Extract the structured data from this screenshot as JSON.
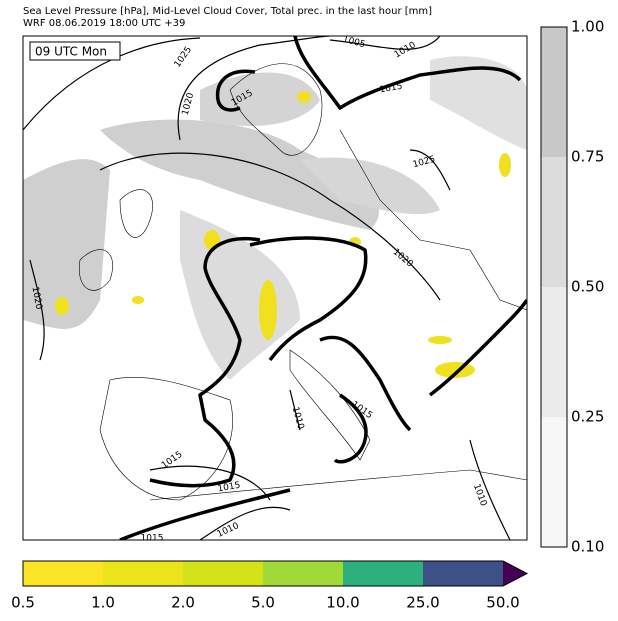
{
  "header": {
    "title": "Sea Level Pressure [hPa], Mid-Level Cloud Cover, Total prec. in the last hour [mm]",
    "subtitle": "WRF 08.06.2019 18:00 UTC +39"
  },
  "map": {
    "time_label": "09 UTC Mon",
    "isobar_labels": [
      "1025",
      "1005",
      "1010",
      "1015",
      "1020",
      "1015",
      "1025",
      "1020",
      "1020",
      "1010",
      "1015",
      "1015",
      "1015",
      "1010",
      "1010",
      "1015"
    ]
  },
  "cloud_colorbar": {
    "ticks": [
      "0.10",
      "0.25",
      "0.50",
      "0.75",
      "1.00"
    ],
    "colors": [
      "#f7f7f7",
      "#ebebeb",
      "#dcdcdc",
      "#c8c8c8"
    ]
  },
  "precip_colorbar": {
    "ticks": [
      "0.5",
      "1.0",
      "2.0",
      "5.0",
      "10.0",
      "25.0",
      "50.0"
    ],
    "colors": [
      "#fbe326",
      "#ece41a",
      "#d4e21a",
      "#a0da39",
      "#2cb17e",
      "#3d5189"
    ],
    "extend_color": "#440154"
  }
}
